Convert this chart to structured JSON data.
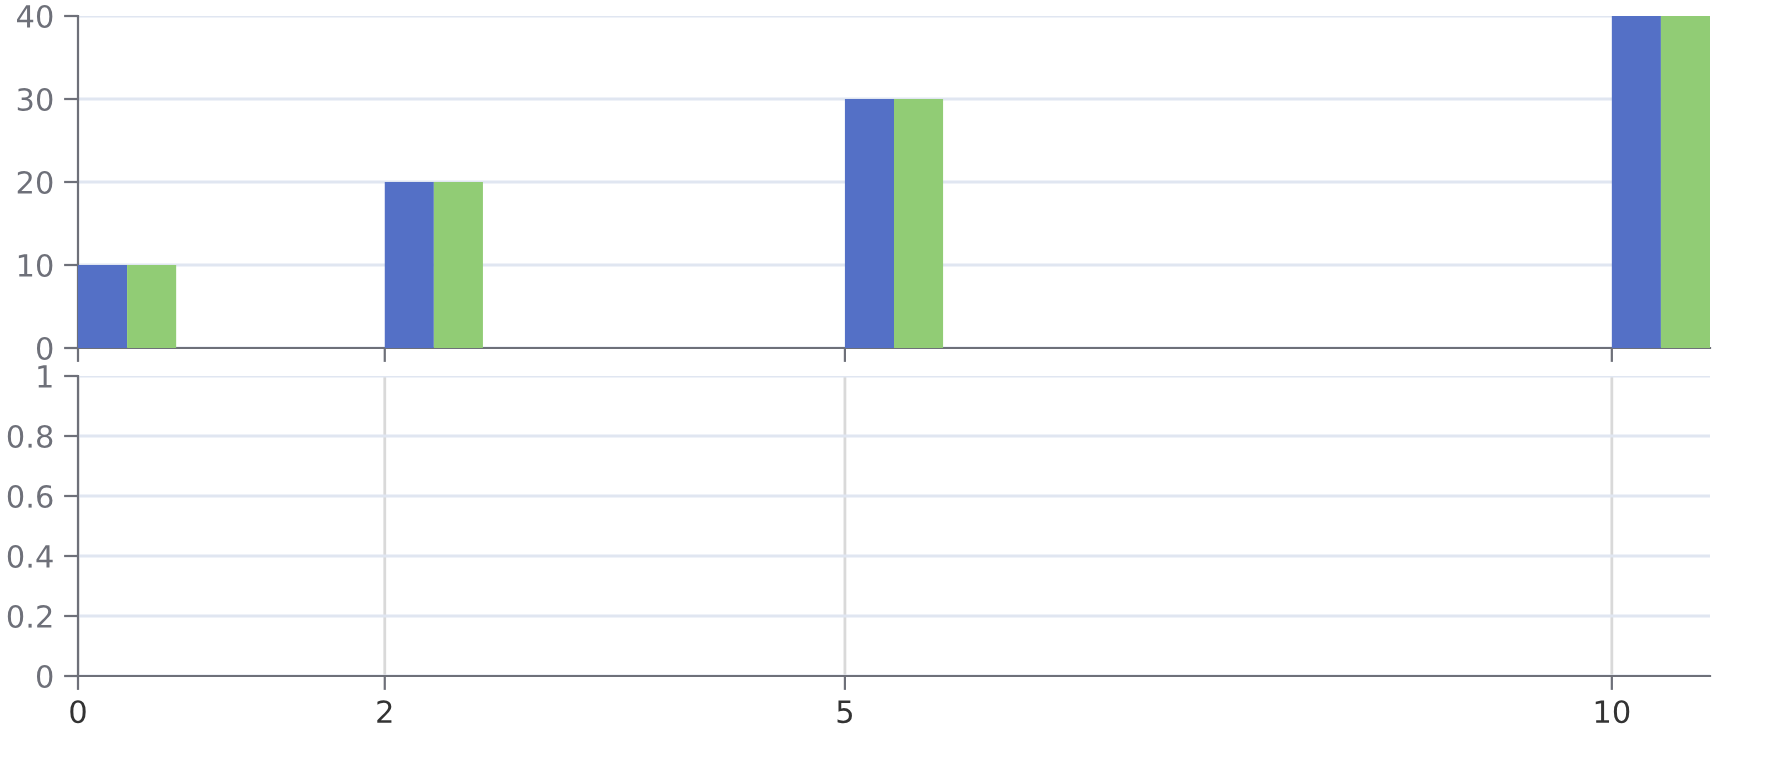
{
  "chart_data": [
    {
      "type": "bar",
      "x": [
        0,
        2,
        5,
        10
      ],
      "xlim": [
        0,
        10.64
      ],
      "xticks": [
        0,
        2,
        5,
        10
      ],
      "ylim": [
        0,
        40
      ],
      "yticks": [
        0,
        10,
        20,
        30,
        40
      ],
      "grid": "y",
      "tick_labels": "y",
      "series": [
        {
          "color": "#5470c6",
          "values": [
            10,
            20,
            30,
            40
          ]
        },
        {
          "color": "#91cc75",
          "values": [
            10,
            20,
            30,
            40
          ]
        }
      ]
    },
    {
      "type": "line",
      "xlim": [
        0,
        10.64
      ],
      "xticks": [
        0,
        2,
        5,
        10
      ],
      "ylim": [
        0,
        1
      ],
      "yticks": [
        0,
        0.2,
        0.4,
        0.6,
        0.8,
        1
      ],
      "grid": true
    }
  ]
}
